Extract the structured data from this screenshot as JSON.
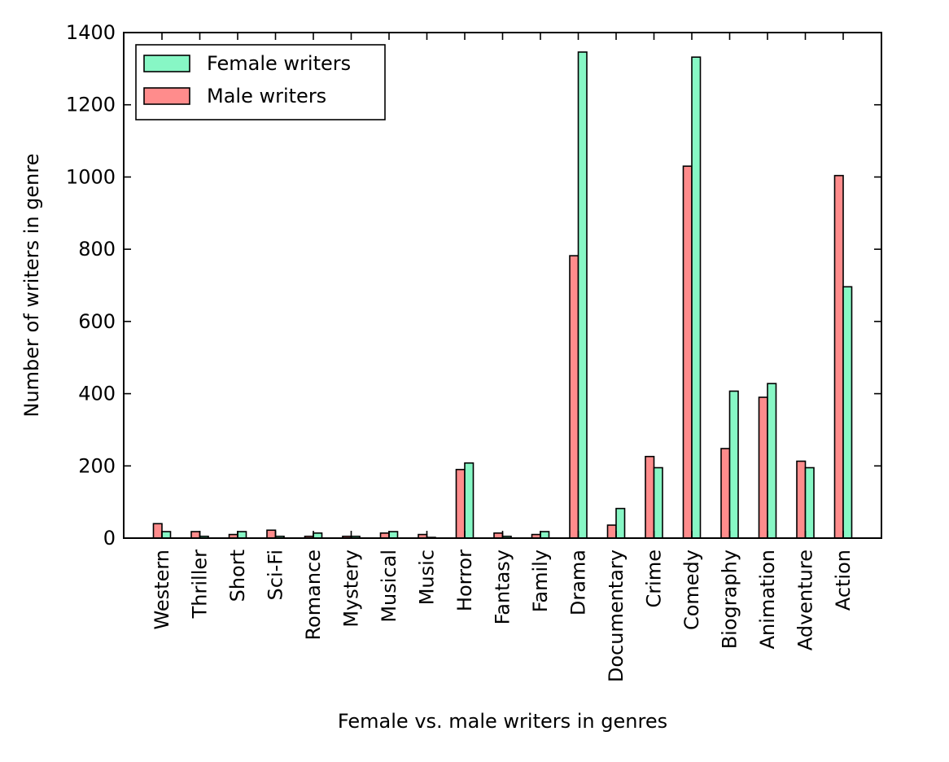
{
  "chart_data": {
    "type": "bar",
    "title": "",
    "xlabel": "Female vs. male writers in genres",
    "ylabel": "Number of writers in genre",
    "ylim": [
      0,
      1400
    ],
    "yticks": [
      0,
      200,
      400,
      600,
      800,
      1000,
      1200,
      1400
    ],
    "grid": false,
    "legend_placement": "top-left",
    "categories": [
      "Western",
      "Thriller",
      "Short",
      "Sci-Fi",
      "Romance",
      "Mystery",
      "Musical",
      "Music",
      "Horror",
      "Fantasy",
      "Family",
      "Drama",
      "Documentary",
      "Crime",
      "Comedy",
      "Biography",
      "Animation",
      "Adventure",
      "Action"
    ],
    "legend_order": [
      "Female writers",
      "Male writers"
    ],
    "series": [
      {
        "name": "Male writers",
        "color": "#ff8c8c",
        "values": [
          40,
          18,
          10,
          22,
          5,
          5,
          14,
          10,
          190,
          14,
          10,
          782,
          36,
          226,
          1030,
          248,
          390,
          213,
          1004
        ]
      },
      {
        "name": "Female writers",
        "color": "#87f7c5",
        "values": [
          18,
          5,
          18,
          5,
          14,
          5,
          18,
          2,
          208,
          5,
          18,
          1346,
          82,
          195,
          1332,
          407,
          428,
          195,
          696
        ]
      }
    ]
  }
}
